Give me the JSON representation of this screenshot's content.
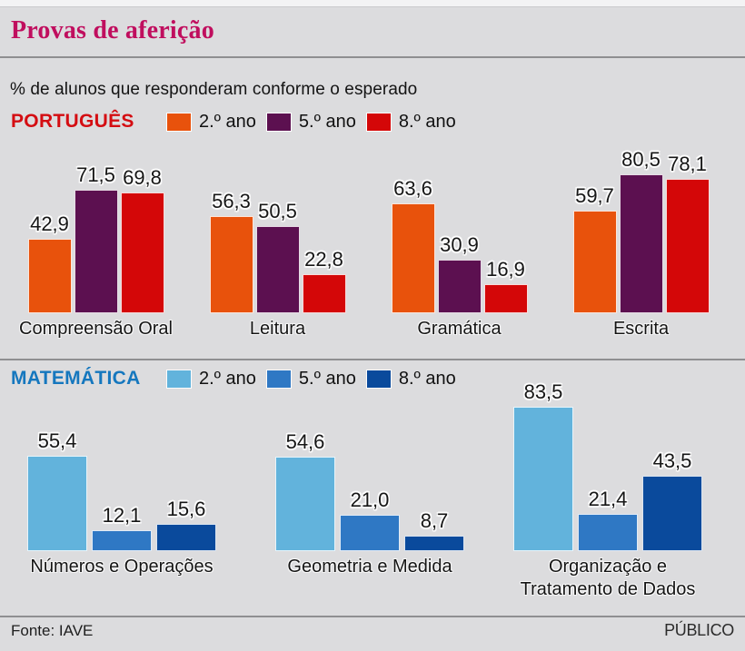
{
  "page": {
    "title": "Provas de aferição",
    "subtitle": "% de alunos que responderam conforme o esperado",
    "source": "Fonte: IAVE",
    "brand": "PÚBLICO"
  },
  "colors": {
    "background": "#DCDCDE",
    "title": "#C00E5E",
    "divider": "#8F8F91"
  },
  "chart_data": [
    {
      "type": "bar",
      "section": "PORTUGUÊS",
      "section_color": "#D40D12",
      "unit": "%",
      "ylim": [
        0,
        85
      ],
      "grid": false,
      "legend_position": "top",
      "legend": [
        {
          "label": "2.º ano",
          "color": "#E8520C"
        },
        {
          "label": "5.º ano",
          "color": "#5C1050"
        },
        {
          "label": "8.º ano",
          "color": "#D40708"
        }
      ],
      "categories": [
        "Compreensão Oral",
        "Leitura",
        "Gramática",
        "Escrita"
      ],
      "series": [
        {
          "name": "2.º ano",
          "values": [
            42.9,
            56.3,
            63.6,
            59.7
          ]
        },
        {
          "name": "5.º ano",
          "values": [
            71.5,
            50.5,
            30.9,
            80.5
          ]
        },
        {
          "name": "8.º ano",
          "values": [
            69.8,
            22.8,
            16.9,
            78.1
          ]
        }
      ]
    },
    {
      "type": "bar",
      "section": "MATEMÁTICA",
      "section_color": "#1577BE",
      "unit": "%",
      "ylim": [
        0,
        85
      ],
      "grid": false,
      "legend_position": "top",
      "legend": [
        {
          "label": "2.º ano",
          "color": "#62B3DC"
        },
        {
          "label": "5.º ano",
          "color": "#2F78C4"
        },
        {
          "label": "8.º ano",
          "color": "#0A4A9C"
        }
      ],
      "categories": [
        "Números e Operações",
        "Geometria e Medida",
        "Organização e\nTratamento de Dados"
      ],
      "series": [
        {
          "name": "2.º ano",
          "values": [
            55.4,
            54.6,
            83.5
          ]
        },
        {
          "name": "5.º ano",
          "values": [
            12.1,
            21.0,
            21.4
          ]
        },
        {
          "name": "8.º ano",
          "values": [
            15.6,
            8.7,
            43.5
          ]
        }
      ]
    }
  ]
}
